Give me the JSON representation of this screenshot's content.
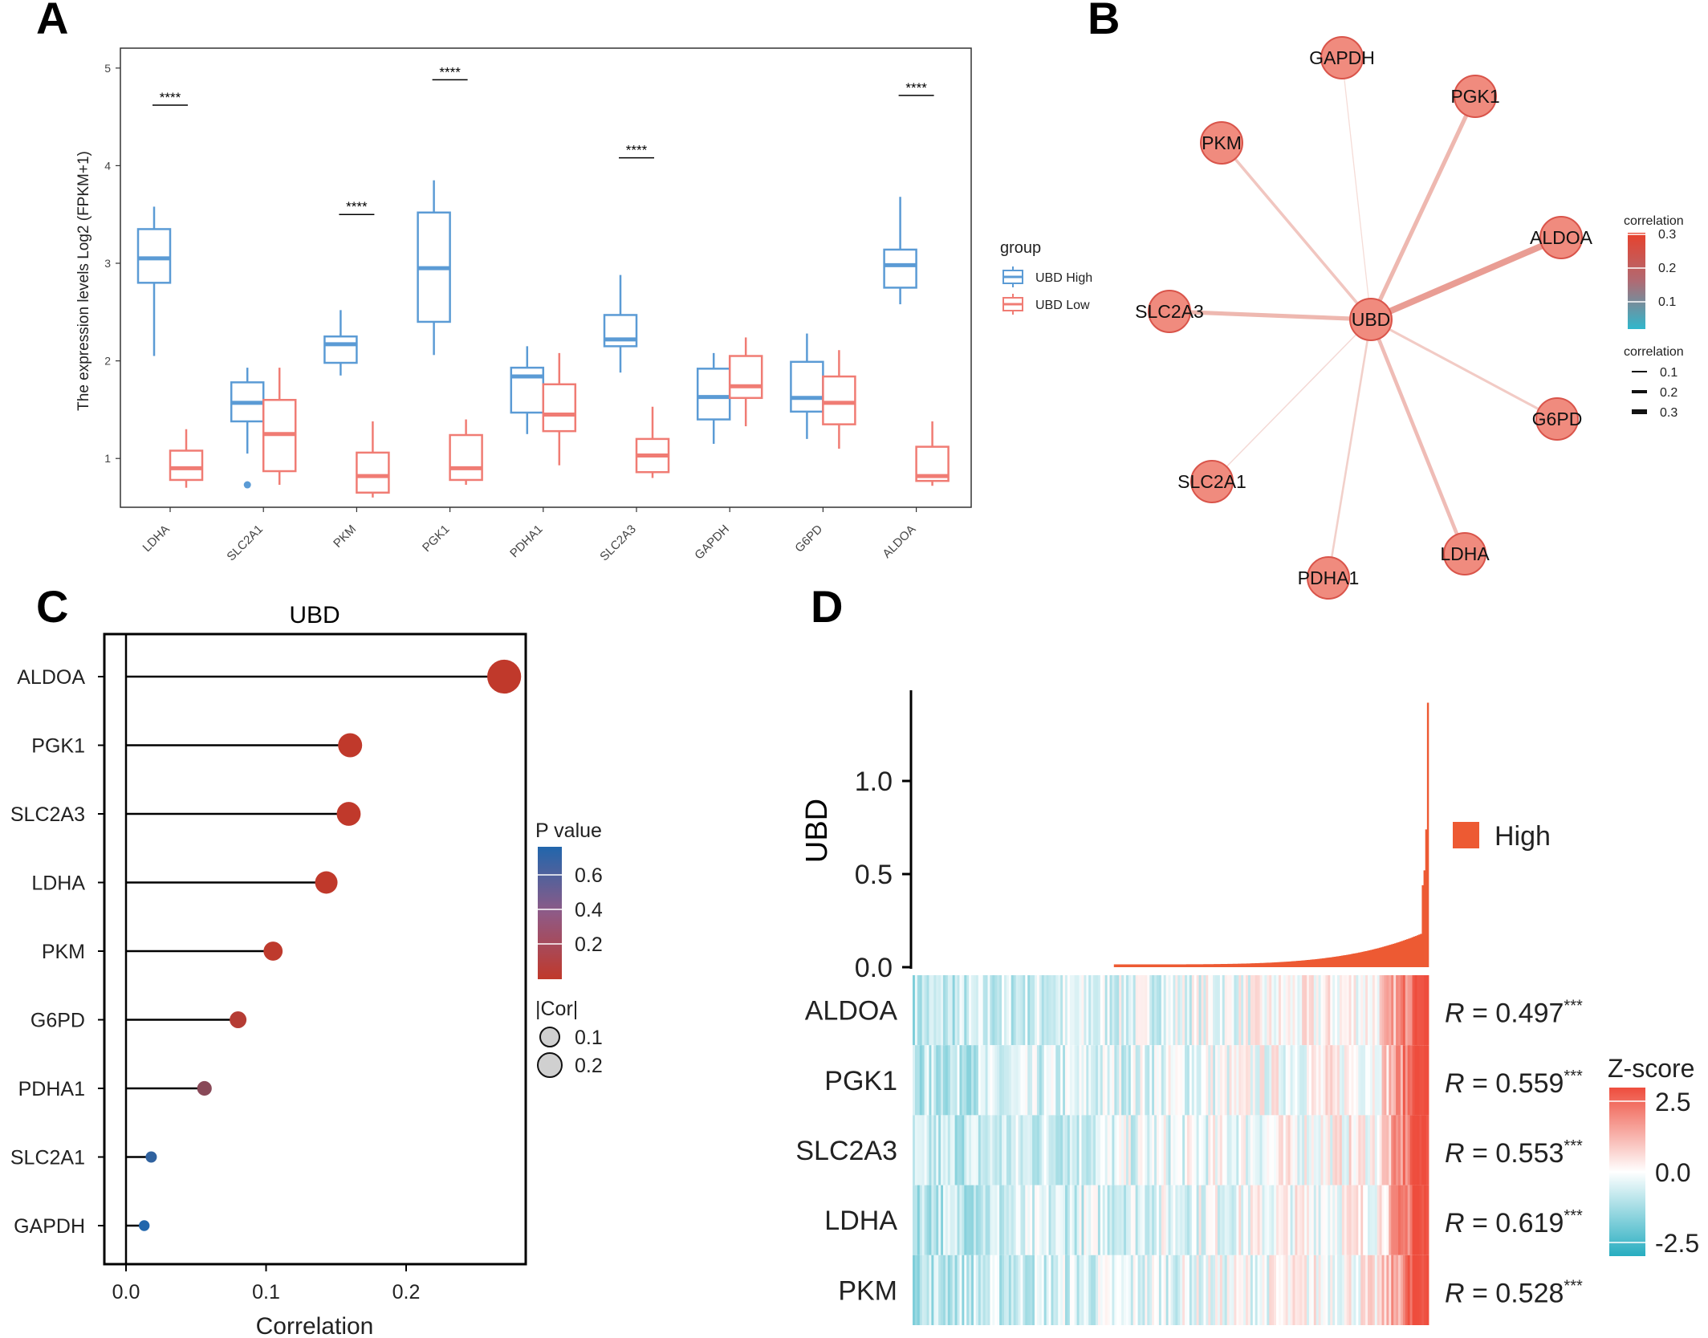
{
  "panels": {
    "A": "A",
    "B": "B",
    "C": "C",
    "D": "D"
  },
  "colors": {
    "high": "#5b9bd5",
    "low": "#f07c74",
    "edge": "#e8a49a",
    "node_fill": "#f08b7e",
    "node_stroke": "#d9544a",
    "bar": "#ed5a33",
    "lollipop_red": "#c0392b",
    "lollipop_blue": "#2166ac"
  },
  "chart_data": [
    {
      "panel": "A",
      "type": "box",
      "ylabel": "The expression levels Log2 (FPKM+1)",
      "ylim": [
        0.5,
        5.05
      ],
      "yticks": [
        "1",
        "2",
        "3",
        "4",
        "5"
      ],
      "categories": [
        "LDHA",
        "SLC2A1",
        "PKM",
        "PGK1",
        "PDHA1",
        "SLC2A3",
        "GAPDH",
        "G6PD",
        "ALDOA"
      ],
      "legend_title": "group",
      "series": [
        {
          "name": "UBD High",
          "boxes": [
            {
              "min": 2.05,
              "q1": 2.8,
              "median": 3.05,
              "q3": 3.35,
              "max": 3.58
            },
            {
              "min": 1.05,
              "q1": 1.38,
              "median": 1.57,
              "q3": 1.78,
              "max": 1.93
            },
            {
              "min": 1.85,
              "q1": 1.98,
              "median": 2.17,
              "q3": 2.25,
              "max": 2.52
            },
            {
              "min": 2.06,
              "q1": 2.4,
              "median": 2.95,
              "q3": 3.52,
              "max": 3.85
            },
            {
              "min": 1.25,
              "q1": 1.47,
              "median": 1.84,
              "q3": 1.93,
              "max": 2.15
            },
            {
              "min": 1.88,
              "q1": 2.15,
              "median": 2.22,
              "q3": 2.47,
              "max": 2.88
            },
            {
              "min": 1.15,
              "q1": 1.4,
              "median": 1.63,
              "q3": 1.92,
              "max": 2.08
            },
            {
              "min": 1.2,
              "q1": 1.48,
              "median": 1.62,
              "q3": 1.99,
              "max": 2.28
            },
            {
              "min": 2.58,
              "q1": 2.75,
              "median": 2.98,
              "q3": 3.14,
              "max": 3.68
            }
          ],
          "outliers": [
            {
              "category": "SLC2A1",
              "value": 0.73
            }
          ]
        },
        {
          "name": "UBD Low",
          "boxes": [
            {
              "min": 0.7,
              "q1": 0.78,
              "median": 0.9,
              "q3": 1.08,
              "max": 1.3
            },
            {
              "min": 0.73,
              "q1": 0.87,
              "median": 1.25,
              "q3": 1.6,
              "max": 1.93
            },
            {
              "min": 0.6,
              "q1": 0.65,
              "median": 0.82,
              "q3": 1.06,
              "max": 1.38
            },
            {
              "min": 0.73,
              "q1": 0.78,
              "median": 0.9,
              "q3": 1.24,
              "max": 1.4
            },
            {
              "min": 0.93,
              "q1": 1.28,
              "median": 1.45,
              "q3": 1.76,
              "max": 2.08
            },
            {
              "min": 0.8,
              "q1": 0.86,
              "median": 1.03,
              "q3": 1.2,
              "max": 1.53
            },
            {
              "min": 1.33,
              "q1": 1.62,
              "median": 1.74,
              "q3": 2.05,
              "max": 2.24
            },
            {
              "min": 1.1,
              "q1": 1.35,
              "median": 1.57,
              "q3": 1.84,
              "max": 2.11
            },
            {
              "min": 0.72,
              "q1": 0.77,
              "median": 0.82,
              "q3": 1.12,
              "max": 1.38
            }
          ]
        }
      ],
      "significance": [
        {
          "category": "LDHA",
          "label": "****",
          "y": 4.62
        },
        {
          "category": "PKM",
          "label": "****",
          "y": 3.5
        },
        {
          "category": "PGK1",
          "label": "****",
          "y": 4.88
        },
        {
          "category": "SLC2A3",
          "label": "****",
          "y": 4.08
        },
        {
          "category": "ALDOA",
          "label": "****",
          "y": 4.72
        }
      ]
    },
    {
      "panel": "B",
      "type": "network",
      "center": "UBD",
      "nodes": [
        "GAPDH",
        "PGK1",
        "PKM",
        "ALDOA",
        "SLC2A3",
        "UBD",
        "G6PD",
        "SLC2A1",
        "PDHA1",
        "LDHA"
      ],
      "edges": [
        {
          "target": "GAPDH",
          "correlation": 0.01
        },
        {
          "target": "PGK1",
          "correlation": 0.16
        },
        {
          "target": "PKM",
          "correlation": 0.1
        },
        {
          "target": "ALDOA",
          "correlation": 0.27
        },
        {
          "target": "SLC2A3",
          "correlation": 0.16
        },
        {
          "target": "G6PD",
          "correlation": 0.08
        },
        {
          "target": "SLC2A1",
          "correlation": 0.02
        },
        {
          "target": "PDHA1",
          "correlation": 0.06
        },
        {
          "target": "LDHA",
          "correlation": 0.14
        }
      ],
      "legend_color_title": "correlation",
      "legend_color_ticks": [
        "0.3",
        "0.2",
        "0.1"
      ],
      "legend_width_title": "correlation",
      "legend_width_ticks": [
        "0.1",
        "0.2",
        "0.3"
      ]
    },
    {
      "panel": "C",
      "type": "lollipop",
      "title": "UBD",
      "xlabel": "Correlation",
      "xlim": [
        -0.015,
        0.28
      ],
      "xticks": [
        "0.0",
        "0.1",
        "0.2"
      ],
      "categories": [
        "ALDOA",
        "PGK1",
        "SLC2A3",
        "LDHA",
        "PKM",
        "G6PD",
        "PDHA1",
        "SLC2A1",
        "GAPDH"
      ],
      "values": [
        0.27,
        0.16,
        0.159,
        0.143,
        0.105,
        0.08,
        0.056,
        0.018,
        0.013
      ],
      "pvalues": [
        0.0,
        0.0,
        0.0,
        0.0,
        0.01,
        0.05,
        0.25,
        0.65,
        0.72
      ],
      "legend_p_title": "P value",
      "legend_p_ticks": [
        "0.6",
        "0.4",
        "0.2"
      ],
      "legend_size_title": "|Cor|",
      "legend_size_ticks": [
        "0.1",
        "0.2"
      ]
    },
    {
      "panel": "D",
      "type": "bar+heatmap",
      "ylabel": "UBD",
      "yticks": [
        "1.0",
        "0.5",
        "0.0"
      ],
      "ylim": [
        0,
        1.48
      ],
      "legend": "High",
      "genes": [
        "ALDOA",
        "PGK1",
        "SLC2A3",
        "LDHA",
        "PKM"
      ],
      "r_values": [
        "0.497",
        "0.559",
        "0.553",
        "0.619",
        "0.528"
      ],
      "r_prefix": "R",
      "significance": "***",
      "zscore_title": "Z-score",
      "zscore_ticks": [
        "2.5",
        "0.0",
        "-2.5"
      ]
    }
  ]
}
